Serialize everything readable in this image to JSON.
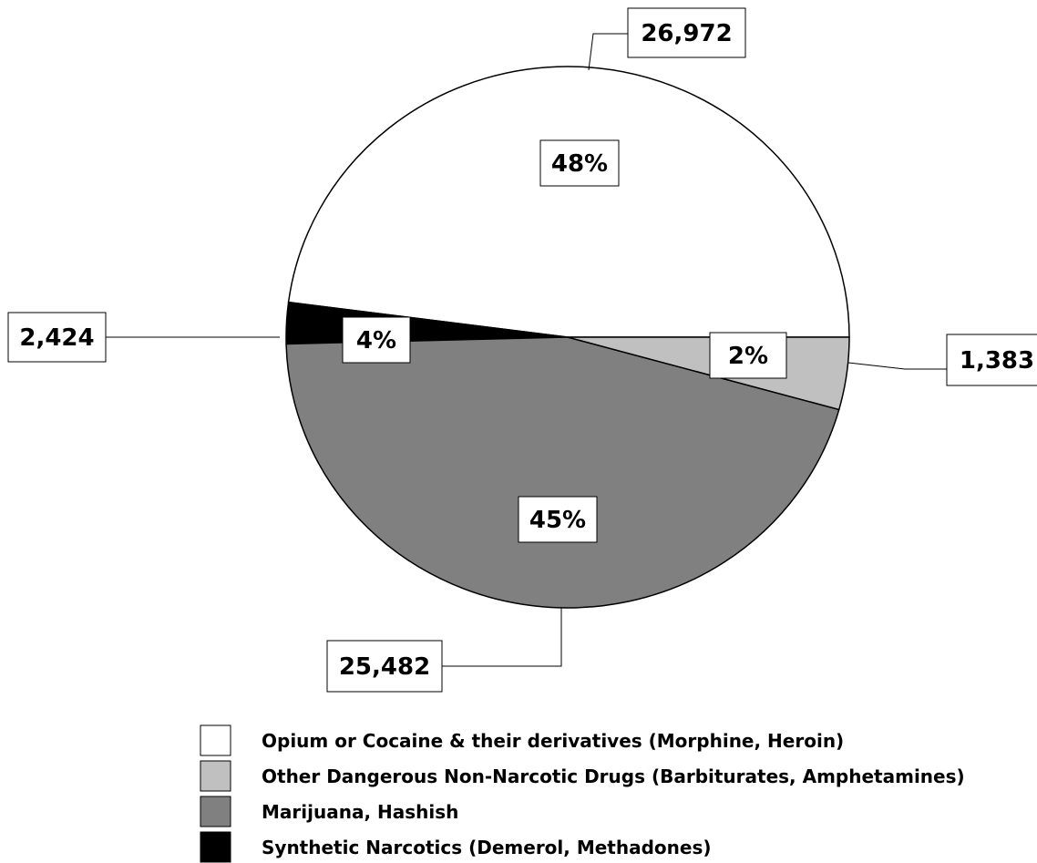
{
  "chart_data": {
    "type": "pie",
    "title": "",
    "legend_position": "bottom",
    "slices": [
      {
        "label": "Opium or Cocaine & their derivatives (Morphine, Heroin)",
        "value": 26972,
        "value_label": "26,972",
        "percent_label": "48%",
        "color": "#ffffff"
      },
      {
        "label": "Synthetic Narcotics (Demerol, Methadones)",
        "value": 1383,
        "value_label": "1,383",
        "percent_label": "2%",
        "color": "#000000"
      },
      {
        "label": "Marijuana, Hashish",
        "value": 25482,
        "value_label": "25,482",
        "percent_label": "45%",
        "color": "#808080"
      },
      {
        "label": "Other Dangerous Non-Narcotic Drugs (Barbiturates, Amphetamines)",
        "value": 2424,
        "value_label": "2,424",
        "percent_label": "4%",
        "color": "#c0c0c0"
      }
    ],
    "legend": [
      {
        "label": "Opium or Cocaine & their derivatives (Morphine, Heroin)",
        "color": "#ffffff"
      },
      {
        "label": "Other Dangerous Non-Narcotic Drugs (Barbiturates, Amphetamines)",
        "color": "#c0c0c0"
      },
      {
        "label": "Marijuana, Hashish",
        "color": "#808080"
      },
      {
        "label": "Synthetic Narcotics (Demerol, Methadones)",
        "color": "#000000"
      }
    ]
  }
}
